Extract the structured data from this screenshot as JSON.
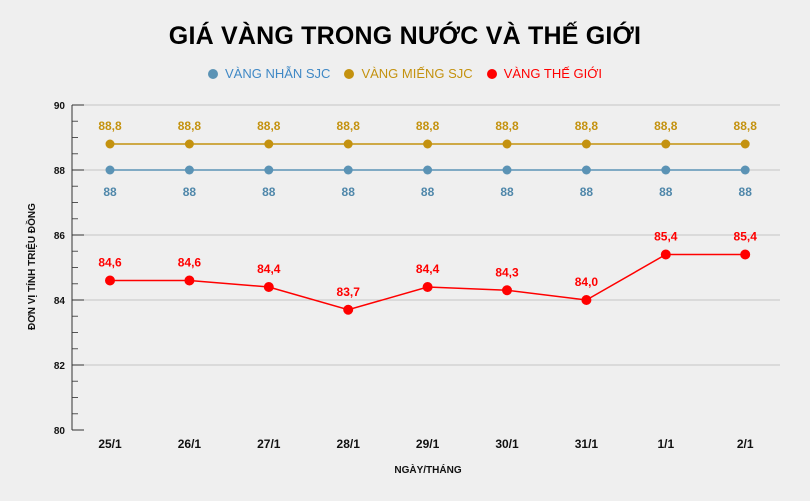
{
  "chart_data": {
    "type": "line",
    "title": "GIÁ VÀNG TRONG NƯỚC VÀ THẾ GIỚI",
    "xlabel": "NGÀY/THÁNG",
    "ylabel": "ĐƠN VỊ TÍNH TRIỆU ĐỒNG",
    "ylim": [
      80,
      90
    ],
    "yticks": [
      "80",
      "82",
      "84",
      "86",
      "88",
      "90"
    ],
    "grid": true,
    "legend_position": "top-center",
    "categories": [
      "25/1",
      "26/1",
      "27/1",
      "28/1",
      "29/1",
      "30/1",
      "31/1",
      "1/1",
      "2/1"
    ],
    "series": [
      {
        "name": "VÀNG NHẪN SJC",
        "color": "#5b93b5",
        "label_position": "below",
        "values": [
          88,
          88,
          88,
          88,
          88,
          88,
          88,
          88,
          88
        ],
        "labels": [
          "88",
          "88",
          "88",
          "88",
          "88",
          "88",
          "88",
          "88",
          "88"
        ]
      },
      {
        "name": "VÀNG MIẾNG SJC",
        "color": "#c4920f",
        "label_position": "above",
        "values": [
          88.8,
          88.8,
          88.8,
          88.8,
          88.8,
          88.8,
          88.8,
          88.8,
          88.8
        ],
        "labels": [
          "88,8",
          "88,8",
          "88,8",
          "88,8",
          "88,8",
          "88,8",
          "88,8",
          "88,8",
          "88,8"
        ]
      },
      {
        "name": "VÀNG THẾ GIỚI",
        "color": "#ff0000",
        "label_position": "above",
        "values": [
          84.6,
          84.6,
          84.4,
          83.7,
          84.4,
          84.3,
          84.0,
          85.4,
          85.4
        ],
        "labels": [
          "84,6",
          "84,6",
          "84,4",
          "83,7",
          "84,4",
          "84,3",
          "84,0",
          "85,4",
          "85,4"
        ]
      }
    ]
  }
}
